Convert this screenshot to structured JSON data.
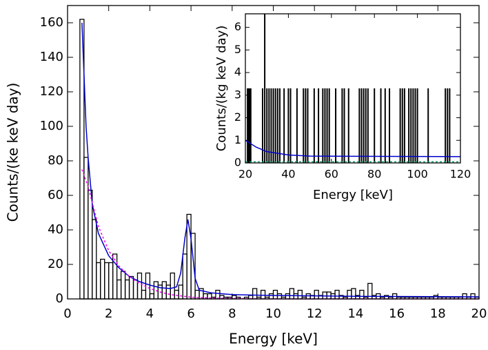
{
  "chart_data": [
    {
      "type": "histogram",
      "xlabel": "Energy [keV]",
      "ylabel": "Counts/(ke keV day)",
      "color": "#000000",
      "bins": [
        0.6,
        0.8,
        1,
        1.2,
        1.4,
        1.6,
        1.8,
        2,
        2.2,
        2.4,
        2.6,
        2.8,
        3,
        3.2,
        3.4,
        3.6,
        3.8,
        4,
        4.2,
        4.4,
        4.6,
        4.8,
        5,
        5.2,
        5.4,
        5.6,
        5.8,
        6,
        6.2,
        6.4,
        6.6,
        6.8,
        7,
        7.2,
        7.4,
        7.6,
        7.8,
        8,
        8.2,
        8.4,
        8.6,
        8.8,
        9,
        9.2,
        9.4,
        9.6,
        9.8,
        10,
        10.2,
        10.4,
        10.6,
        10.8,
        11,
        11.2,
        11.4,
        11.6,
        11.8,
        12,
        12.2,
        12.4,
        12.6,
        12.8,
        13,
        13.2,
        13.4,
        13.6,
        13.8,
        14,
        14.2,
        14.4,
        14.6,
        14.8,
        15,
        15.2,
        15.4,
        15.6,
        15.8,
        16,
        16.2,
        16.4,
        16.6,
        16.8,
        17,
        17.2,
        17.4,
        17.6,
        17.8,
        18,
        18.2,
        18.4,
        18.6,
        18.8,
        19,
        19.2,
        19.4,
        19.6,
        19.8,
        20
      ],
      "values": [
        162,
        82,
        63,
        46,
        21,
        23,
        21,
        21,
        26,
        11,
        16,
        11,
        13,
        11,
        15,
        5,
        15,
        3,
        10,
        8,
        10,
        8,
        15,
        5,
        8,
        26,
        49,
        38,
        5,
        6,
        3,
        3,
        1,
        5,
        2,
        1,
        1,
        2,
        1,
        0,
        1,
        2,
        6,
        1,
        5,
        1,
        3,
        5,
        3,
        1,
        3,
        6,
        3,
        5,
        1,
        3,
        2,
        5,
        2,
        4,
        4,
        3,
        5,
        2,
        1,
        5,
        6,
        2,
        5,
        1,
        9,
        2,
        3,
        1,
        2,
        1,
        3,
        1,
        1,
        1,
        1,
        1,
        1,
        1,
        1,
        1,
        2,
        1,
        1,
        1,
        1,
        1,
        1,
        3,
        1,
        3,
        1
      ],
      "curves": [
        {
          "color": "#0000cc",
          "dashed": false,
          "x": [
            0.7,
            0.9,
            1,
            1.2,
            1.5,
            2,
            2.5,
            3,
            3.5,
            4,
            4.5,
            5,
            5.3,
            5.5,
            5.7,
            5.85,
            6,
            6.2,
            6.4,
            7,
            8,
            10,
            14,
            20
          ],
          "values": [
            160,
            100,
            82,
            55,
            38,
            25,
            18,
            13,
            10,
            8,
            6.5,
            6,
            7,
            15,
            35,
            46,
            35,
            12,
            5,
            3.5,
            2.5,
            2,
            1.5,
            1.2
          ]
        },
        {
          "color": "#ee00ee",
          "dashed": true,
          "x": [
            0.7,
            1,
            1.5,
            2,
            2.5,
            3,
            3.5,
            4,
            4.5,
            5,
            6,
            7,
            10,
            20
          ],
          "values": [
            75,
            65,
            42,
            28,
            19,
            13,
            9,
            6,
            4,
            2.5,
            1,
            0.5,
            0,
            0
          ]
        }
      ],
      "xlim": [
        0,
        20
      ],
      "ylim": [
        0,
        170
      ],
      "xticks": [
        0,
        2,
        4,
        6,
        8,
        10,
        12,
        14,
        16,
        18,
        20
      ],
      "yticks": [
        0,
        20,
        40,
        60,
        80,
        100,
        120,
        140,
        160
      ]
    },
    {
      "type": "spikes",
      "xlabel": "Energy [keV]",
      "ylabel": "Counts/(kg keV day)",
      "color": "#000000",
      "x": [
        21,
        21.5,
        22,
        22.5,
        28,
        29,
        30,
        31,
        32,
        33,
        34,
        35,
        36,
        38,
        40,
        41,
        44,
        47,
        48,
        49,
        52,
        54,
        56,
        57,
        58,
        59,
        62,
        65,
        66,
        68,
        73,
        74,
        75,
        76,
        77,
        80,
        83,
        85,
        87,
        92,
        93,
        94,
        96,
        97,
        98,
        99,
        100,
        105,
        113,
        114,
        115
      ],
      "values": [
        3.3,
        3.3,
        3.3,
        3.3,
        3.3,
        6.6,
        3.3,
        3.3,
        3.3,
        3.3,
        3.3,
        3.3,
        3.3,
        3.3,
        3.3,
        3.3,
        3.3,
        3.3,
        3.3,
        3.3,
        3.3,
        3.3,
        3.3,
        3.3,
        3.3,
        3.3,
        3.3,
        3.3,
        3.3,
        3.3,
        3.3,
        3.3,
        3.3,
        3.3,
        3.3,
        3.3,
        3.3,
        3.3,
        3.3,
        3.3,
        3.3,
        3.3,
        3.3,
        3.3,
        3.3,
        3.3,
        3.3,
        3.3,
        3.3,
        3.3,
        3.3
      ],
      "curves": [
        {
          "color": "#0000cc",
          "dashed": false,
          "x": [
            20,
            25,
            30,
            40,
            50,
            120
          ],
          "values": [
            1,
            0.7,
            0.5,
            0.35,
            0.3,
            0.28
          ]
        },
        {
          "color": "#009966",
          "dashed": true,
          "x": [
            20,
            120
          ],
          "values": [
            0.05,
            0.05
          ]
        }
      ],
      "xlim": [
        20,
        120
      ],
      "ylim": [
        0,
        6.6
      ],
      "xticks": [
        20,
        40,
        60,
        80,
        100,
        120
      ],
      "yticks": [
        0,
        1,
        2,
        3,
        4,
        5,
        6
      ]
    }
  ]
}
